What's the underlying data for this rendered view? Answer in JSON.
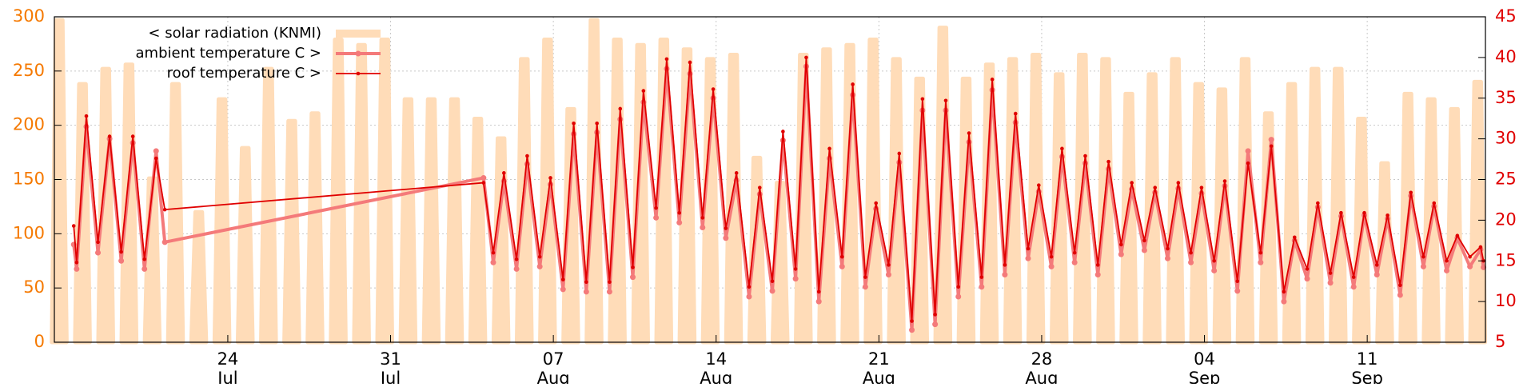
{
  "chart_data": {
    "type": "line",
    "legend": "top-left",
    "grid": true,
    "ylim": [
      0,
      300
    ],
    "yticks": [
      0,
      50,
      100,
      150,
      200,
      250,
      300
    ],
    "ytick_color": "#f57900",
    "y2lim": [
      5,
      45
    ],
    "y2ticks": [
      5,
      10,
      15,
      20,
      25,
      30,
      35,
      40,
      45
    ],
    "y2tick_color": "#e00000",
    "xlim": [
      "07-16 13:00",
      "09-16 02:00"
    ],
    "xticks": [
      {
        "value": "07-24",
        "label": [
          "24",
          "Jul"
        ]
      },
      {
        "value": "07-31",
        "label": [
          "31",
          "Jul"
        ]
      },
      {
        "value": "08-07",
        "label": [
          "07",
          "Aug"
        ]
      },
      {
        "value": "08-14",
        "label": [
          "14",
          "Aug"
        ]
      },
      {
        "value": "08-21",
        "label": [
          "21",
          "Aug"
        ]
      },
      {
        "value": "08-28",
        "label": [
          "28",
          "Aug"
        ]
      },
      {
        "value": "09-04",
        "label": [
          "04",
          "Sep"
        ]
      },
      {
        "value": "09-11",
        "label": [
          "11",
          "Sep"
        ]
      }
    ],
    "x": [
      "07-17 09:00",
      "07-17 12:00",
      "07-17 22:00",
      "07-18 10:00",
      "07-18 22:00",
      "07-19 10:00",
      "07-19 22:00",
      "07-20 10:00",
      "07-20 22:00",
      "07-21 07:00",
      "08-04 00:00",
      "08-04 10:00",
      "08-04 21:00",
      "08-05 10:00",
      "08-05 21:00",
      "08-06 10:00",
      "08-06 21:00",
      "08-07 10:00",
      "08-07 21:00",
      "08-08 10:00",
      "08-08 21:00",
      "08-09 10:00",
      "08-09 21:00",
      "08-10 10:00",
      "08-10 21:00",
      "08-11 10:00",
      "08-11 21:00",
      "08-12 10:00",
      "08-12 21:00",
      "08-13 10:00",
      "08-13 21:00",
      "08-14 10:00",
      "08-14 21:00",
      "08-15 10:00",
      "08-15 21:00",
      "08-16 10:00",
      "08-16 21:00",
      "08-17 10:00",
      "08-17 21:00",
      "08-18 10:00",
      "08-18 21:00",
      "08-19 10:00",
      "08-19 21:00",
      "08-20 10:00",
      "08-20 21:00",
      "08-21 10:00",
      "08-21 21:00",
      "08-22 10:00",
      "08-22 21:00",
      "08-23 10:00",
      "08-23 21:00",
      "08-24 10:00",
      "08-24 21:00",
      "08-25 10:00",
      "08-25 21:00",
      "08-26 10:00",
      "08-26 21:00",
      "08-27 10:00",
      "08-27 21:00",
      "08-28 10:00",
      "08-28 21:00",
      "08-29 10:00",
      "08-29 21:00",
      "08-30 10:00",
      "08-30 21:00",
      "08-31 10:00",
      "08-31 21:00",
      "09-01 10:00",
      "09-01 21:00",
      "09-02 10:00",
      "09-02 21:00",
      "09-03 10:00",
      "09-03 21:00",
      "09-04 10:00",
      "09-04 21:00",
      "09-05 10:00",
      "09-05 21:00",
      "09-06 10:00",
      "09-06 21:00",
      "09-07 10:00",
      "09-07 21:00",
      "09-08 10:00",
      "09-08 21:00",
      "09-09 10:00",
      "09-09 21:00",
      "09-10 10:00",
      "09-10 21:00",
      "09-11 10:00",
      "09-11 21:00",
      "09-12 10:00",
      "09-12 21:00",
      "09-13 10:00",
      "09-13 21:00",
      "09-14 10:00",
      "09-14 21:00",
      "09-15 10:00",
      "09-15 21:00",
      "09-16 00:00"
    ],
    "series": [
      {
        "name": "< solar radiation (KNMI)",
        "type": "area",
        "color": "#ffdcb8",
        "x": [
          "07-16",
          "07-17",
          "07-18",
          "07-19",
          "07-20",
          "07-21",
          "07-22",
          "07-23",
          "07-24",
          "07-25",
          "07-26",
          "07-27",
          "07-28",
          "07-29",
          "07-30",
          "07-31",
          "08-01",
          "08-02",
          "08-03",
          "08-04",
          "08-05",
          "08-06",
          "08-07",
          "08-08",
          "08-09",
          "08-10",
          "08-11",
          "08-12",
          "08-13",
          "08-14",
          "08-15",
          "08-16",
          "08-17",
          "08-18",
          "08-19",
          "08-20",
          "08-21",
          "08-22",
          "08-23",
          "08-24",
          "08-25",
          "08-26",
          "08-27",
          "08-28",
          "08-29",
          "08-30",
          "08-31",
          "09-01",
          "09-02",
          "09-03",
          "09-04",
          "09-05",
          "09-06",
          "09-07",
          "09-08",
          "09-09",
          "09-10",
          "09-11",
          "09-12",
          "09-13",
          "09-14",
          "09-15"
        ],
        "values": [
          297,
          238,
          252,
          256,
          151,
          238,
          120,
          224,
          179,
          252,
          204,
          211,
          279,
          274,
          279,
          224,
          224,
          224,
          206,
          188,
          261,
          279,
          215,
          297,
          279,
          274,
          279,
          270,
          261,
          265,
          170,
          147,
          265,
          270,
          274,
          279,
          261,
          243,
          290,
          243,
          256,
          261,
          265,
          247,
          265,
          261,
          229,
          247,
          261,
          238,
          233,
          261,
          211,
          238,
          252,
          252,
          206,
          165,
          229,
          224,
          215,
          240
        ]
      },
      {
        "name": "ambient temperature C >",
        "type": "line",
        "axis": "y2",
        "color": "#f47a7a",
        "values": [
          17.0,
          14.0,
          31.5,
          16.0,
          30.0,
          15.0,
          29.5,
          14.0,
          28.5,
          17.3,
          25.2,
          14.8,
          24.8,
          14.0,
          26.9,
          14.3,
          24.4,
          11.5,
          30.6,
          11.2,
          30.8,
          11.2,
          32.4,
          13.0,
          34.5,
          20.3,
          38.6,
          19.7,
          38.0,
          19.1,
          35.0,
          17.8,
          24.9,
          10.6,
          23.2,
          11.3,
          29.8,
          12.8,
          38.9,
          10.0,
          27.6,
          14.3,
          35.4,
          11.8,
          21.4,
          13.3,
          27.1,
          6.5,
          33.5,
          7.2,
          33.5,
          10.6,
          29.6,
          11.8,
          36.0,
          13.3,
          32.0,
          15.3,
          23.5,
          14.3,
          27.8,
          14.8,
          27.0,
          13.3,
          26.3,
          15.8,
          23.8,
          16.3,
          23.4,
          15.3,
          23.9,
          14.8,
          23.3,
          13.8,
          24.2,
          11.3,
          28.5,
          14.8,
          29.9,
          10.0,
          17.5,
          12.8,
          21.6,
          12.3,
          20.5,
          11.8,
          20.6,
          13.3,
          20.2,
          10.8,
          23.0,
          14.3,
          21.7,
          13.8,
          17.8,
          14.3,
          16.4,
          14.2
        ]
      },
      {
        "name": "roof temperature C >",
        "type": "line",
        "axis": "y2",
        "color": "#e00000",
        "values": [
          19.3,
          14.8,
          32.8,
          17.3,
          30.3,
          16.1,
          30.3,
          15.2,
          27.6,
          21.3,
          24.6,
          16.0,
          25.8,
          15.2,
          27.9,
          15.5,
          25.2,
          12.7,
          31.9,
          12.4,
          31.9,
          12.4,
          33.7,
          14.2,
          35.9,
          21.5,
          39.8,
          20.9,
          39.4,
          20.3,
          36.1,
          19.0,
          25.8,
          11.8,
          24.0,
          12.5,
          30.9,
          14.0,
          40.0,
          11.2,
          28.8,
          15.5,
          36.7,
          13.0,
          22.1,
          14.5,
          28.2,
          7.6,
          34.9,
          8.4,
          34.7,
          11.8,
          30.7,
          13.0,
          37.3,
          14.5,
          33.1,
          16.5,
          24.3,
          15.5,
          28.8,
          16.0,
          27.9,
          14.5,
          27.2,
          17.0,
          24.6,
          17.5,
          24.0,
          16.5,
          24.6,
          16.0,
          24.0,
          15.0,
          24.8,
          12.5,
          27.0,
          16.0,
          29.1,
          11.2,
          17.9,
          14.0,
          22.1,
          13.5,
          20.9,
          13.0,
          20.9,
          14.5,
          20.6,
          12.0,
          23.4,
          15.5,
          22.1,
          15.0,
          18.1,
          15.5,
          16.7,
          15.0
        ]
      }
    ]
  }
}
